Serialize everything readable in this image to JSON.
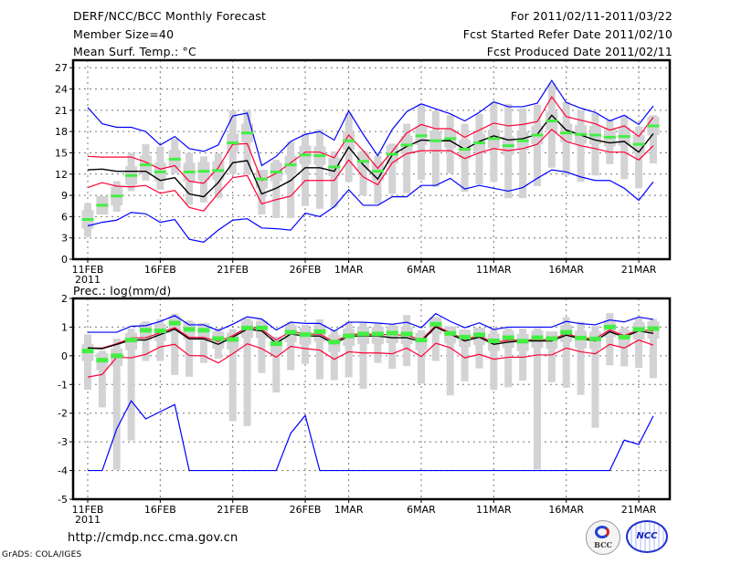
{
  "header": {
    "title": "DERF/NCC/BCC Monthly Forecast",
    "member_size": "Member Size=40",
    "variable": "Mean Surf. Temp.: °C",
    "period": "For 2011/02/11-2011/03/22",
    "started": "Fcst Started Refer Date 2011/02/10",
    "produced": "Fcst Produced Date 2011/02/11"
  },
  "footer": {
    "url": "http://cmdp.ncc.cma.gov.cn",
    "credit": "GrADS: COLA/IGES",
    "logo_bcc": "BCC",
    "logo_ncc": "NCC"
  },
  "colors": {
    "envelope": "#0000ff",
    "spread": "#ff0033",
    "mean": "#000000",
    "member_box": "#d3d3d6",
    "median": "#44ee44"
  },
  "chart_data": [
    {
      "type": "box-line",
      "title": "Mean Surf. Temp.: °C",
      "ylabel": "°C",
      "ylim": [
        0,
        27
      ],
      "yticks": [
        0,
        3,
        6,
        9,
        12,
        15,
        18,
        21,
        24,
        27
      ],
      "grid": true,
      "x_start": "2011-02-11",
      "xticks": [
        {
          "day": 0,
          "label": "11FEB",
          "sub": "2011"
        },
        {
          "day": 5,
          "label": "16FEB"
        },
        {
          "day": 10,
          "label": "21FEB"
        },
        {
          "day": 15,
          "label": "26FEB"
        },
        {
          "day": 18,
          "label": "1MAR"
        },
        {
          "day": 23,
          "label": "6MAR"
        },
        {
          "day": 28,
          "label": "11MAR"
        },
        {
          "day": 33,
          "label": "16MAR"
        },
        {
          "day": 38,
          "label": "21MAR"
        }
      ],
      "median": [
        5.6,
        7.6,
        8.9,
        11.8,
        13.3,
        12.3,
        14.1,
        12.3,
        12.4,
        12.5,
        16.4,
        17.8,
        11.3,
        12.3,
        13.3,
        14.7,
        14.6,
        13.0,
        16.7,
        13.8,
        12.4,
        14.8,
        16.1,
        17.4,
        16.7,
        17.0,
        15.5,
        16.4,
        17.0,
        16.0,
        16.7,
        17.5,
        19.5,
        17.8,
        17.6,
        17.5,
        17.2,
        17.3,
        16.2,
        18.8
      ],
      "box_low": [
        4.3,
        6.3,
        7.6,
        10.5,
        12.0,
        11.0,
        12.8,
        11.0,
        11.1,
        11.2,
        15.1,
        16.5,
        10.0,
        11.0,
        12.0,
        13.4,
        13.3,
        11.7,
        15.4,
        12.5,
        11.1,
        13.5,
        14.8,
        16.1,
        15.4,
        15.7,
        14.2,
        15.1,
        15.7,
        14.7,
        15.4,
        16.2,
        18.2,
        16.5,
        16.3,
        16.2,
        15.9,
        16.0,
        14.9,
        17.5
      ],
      "box_high": [
        6.9,
        8.9,
        10.2,
        13.1,
        14.6,
        13.6,
        15.4,
        13.6,
        13.7,
        13.8,
        17.7,
        19.1,
        12.6,
        13.6,
        14.6,
        16.0,
        15.9,
        14.3,
        18.0,
        15.1,
        13.7,
        16.1,
        17.4,
        18.7,
        18.0,
        18.3,
        16.8,
        17.7,
        18.3,
        17.3,
        18.0,
        18.8,
        20.8,
        19.1,
        18.9,
        18.8,
        18.5,
        18.6,
        17.5,
        20.1
      ],
      "min": [
        3.2,
        6.3,
        6.7,
        9.6,
        11.1,
        9.8,
        12.1,
        7.7,
        8.0,
        8.6,
        12.0,
        12.0,
        6.3,
        5.8,
        5.8,
        7.5,
        7.1,
        7.3,
        10.9,
        9.0,
        7.8,
        9.2,
        9.3,
        11.2,
        10.2,
        12.1,
        9.5,
        10.5,
        10.9,
        8.6,
        8.6,
        10.3,
        12.9,
        11.8,
        10.9,
        11.8,
        13.4,
        11.3,
        10.0,
        13.5
      ],
      "max": [
        7.9,
        8.8,
        11.0,
        15.0,
        16.2,
        15.9,
        17.0,
        15.0,
        14.5,
        14.9,
        21.0,
        21.0,
        12.2,
        14.0,
        16.6,
        17.7,
        18.3,
        15.2,
        20.6,
        15.3,
        14.6,
        16.3,
        19.1,
        21.9,
        20.9,
        20.3,
        19.1,
        20.5,
        22.1,
        21.9,
        21.3,
        21.8,
        24.8,
        22.2,
        21.0,
        20.6,
        19.7,
        20.3,
        18.7,
        20.3
      ],
      "mean": [
        12.6,
        12.7,
        12.4,
        12.4,
        12.4,
        11.1,
        11.5,
        9.2,
        8.8,
        10.8,
        13.6,
        13.9,
        9.2,
        10.0,
        11.1,
        12.9,
        12.9,
        12.4,
        15.8,
        13.3,
        11.3,
        14.7,
        15.9,
        16.8,
        16.7,
        16.7,
        15.5,
        16.6,
        17.4,
        16.8,
        17.0,
        17.6,
        20.3,
        18.2,
        17.5,
        16.8,
        16.4,
        16.6,
        15.1,
        17.7
      ],
      "spread_upper": [
        14.5,
        14.4,
        14.4,
        14.4,
        13.7,
        12.7,
        13.2,
        11.0,
        10.7,
        12.9,
        16.2,
        16.3,
        11.1,
        12.1,
        13.6,
        15.1,
        15.1,
        14.3,
        17.5,
        15.3,
        12.8,
        15.2,
        17.8,
        19.0,
        18.4,
        18.4,
        17.2,
        18.2,
        19.2,
        18.8,
        19.0,
        19.4,
        22.9,
        20.1,
        19.6,
        19.1,
        18.2,
        18.8,
        17.3,
        20.0
      ],
      "spread_lower": [
        10.1,
        10.8,
        10.3,
        10.2,
        10.4,
        9.3,
        9.7,
        7.3,
        6.8,
        9.3,
        11.5,
        11.8,
        7.8,
        8.4,
        8.9,
        11.1,
        11.1,
        11.1,
        14.0,
        11.6,
        10.5,
        13.6,
        14.9,
        15.3,
        15.3,
        15.3,
        14.2,
        15.0,
        15.6,
        15.3,
        15.6,
        16.2,
        18.3,
        16.6,
        16.0,
        15.6,
        15.1,
        15.1,
        14.0,
        16.0
      ],
      "envelope_upper": [
        21.4,
        19.1,
        18.6,
        18.6,
        18.0,
        16.1,
        17.3,
        15.6,
        15.2,
        16.1,
        20.2,
        20.6,
        13.2,
        14.5,
        16.6,
        17.6,
        18.0,
        16.8,
        20.9,
        17.6,
        14.6,
        18.3,
        20.8,
        21.9,
        21.2,
        20.5,
        19.5,
        20.7,
        22.2,
        21.5,
        21.5,
        22.0,
        25.2,
        22.1,
        21.3,
        20.7,
        19.5,
        20.3,
        19.0,
        21.6
      ],
      "envelope_lower": [
        4.7,
        5.2,
        5.5,
        6.6,
        6.4,
        5.2,
        5.6,
        2.8,
        2.4,
        4.1,
        5.5,
        5.7,
        4.4,
        4.3,
        4.1,
        6.5,
        6.0,
        7.4,
        9.8,
        7.6,
        7.6,
        8.8,
        8.8,
        10.4,
        10.4,
        11.4,
        9.9,
        10.4,
        10.0,
        9.6,
        10.1,
        11.4,
        12.6,
        12.3,
        11.6,
        11.1,
        11.1,
        10.0,
        8.3,
        10.9
      ]
    },
    {
      "type": "box-line",
      "title": "Prec.: log(mm/d)",
      "ylabel": "log(mm/d)",
      "ylim": [
        -5,
        2
      ],
      "yticks": [
        -5,
        -4,
        -3,
        -2,
        -1,
        0,
        1,
        2
      ],
      "grid": true,
      "x_start": "2011-02-11",
      "xticks": [
        {
          "day": 0,
          "label": "11FEB",
          "sub": "2011"
        },
        {
          "day": 5,
          "label": "16FEB"
        },
        {
          "day": 10,
          "label": "21FEB"
        },
        {
          "day": 15,
          "label": "26FEB"
        },
        {
          "day": 18,
          "label": "1MAR"
        },
        {
          "day": 23,
          "label": "6MAR"
        },
        {
          "day": 28,
          "label": "11MAR"
        },
        {
          "day": 33,
          "label": "16MAR"
        },
        {
          "day": 38,
          "label": "21MAR"
        }
      ],
      "median": [
        0.17,
        -0.15,
        0,
        0.55,
        0.89,
        0.87,
        1.14,
        0.92,
        0.89,
        0.6,
        0.57,
        0.97,
        0.97,
        0.42,
        0.82,
        0.74,
        0.84,
        0.48,
        0.69,
        0.76,
        0.76,
        0.79,
        0.76,
        0.55,
        1.1,
        0.78,
        0.65,
        0.73,
        0.52,
        0.63,
        0.51,
        0.63,
        0.6,
        0.82,
        0.62,
        0.59,
        1.0,
        0.65,
        0.92,
        0.95
      ],
      "box_low": [
        -0.18,
        -0.5,
        -0.35,
        0.2,
        0.54,
        0.52,
        0.79,
        0.57,
        0.54,
        0.25,
        0.22,
        0.62,
        0.62,
        0.07,
        0.47,
        0.39,
        0.49,
        0.13,
        0.34,
        0.41,
        0.41,
        0.44,
        0.41,
        0.2,
        0.75,
        0.43,
        0.3,
        0.38,
        0.17,
        0.28,
        0.16,
        0.28,
        0.25,
        0.47,
        0.27,
        0.24,
        0.65,
        0.3,
        0.57,
        0.6
      ],
      "box_high": [
        0.42,
        0.1,
        0.25,
        0.8,
        1.14,
        1.12,
        1.39,
        1.17,
        1.14,
        0.85,
        0.82,
        1.22,
        1.22,
        0.67,
        1.07,
        0.99,
        1.09,
        0.73,
        0.94,
        1.01,
        1.01,
        1.04,
        1.01,
        0.8,
        1.35,
        1.03,
        0.9,
        0.98,
        0.77,
        0.88,
        0.76,
        0.88,
        0.85,
        1.07,
        0.87,
        0.84,
        1.25,
        0.9,
        1.17,
        1.2
      ],
      "min": [
        -1.18,
        -1.8,
        -3.97,
        -2.95,
        -0.18,
        -0.18,
        -0.67,
        -0.73,
        -0.25,
        -0.1,
        -2.28,
        -2.45,
        -0.6,
        -1.28,
        -0.5,
        -0.28,
        -0.82,
        -0.85,
        -0.75,
        -1.15,
        -0.25,
        -0.45,
        -0.36,
        -0.97,
        -0.18,
        -1.38,
        -0.89,
        -0.44,
        -1.19,
        -1.1,
        -0.87,
        -3.96,
        -0.92,
        -1.11,
        -1.36,
        -2.51,
        -0.33,
        -0.37,
        -0.42,
        -0.78
      ],
      "max": [
        0.75,
        0.18,
        0.6,
        0.95,
        1.2,
        1.28,
        1.47,
        1.23,
        1.1,
        0.97,
        0.93,
        1.3,
        1.25,
        0.62,
        1.2,
        1.08,
        1.27,
        0.9,
        1.2,
        1.18,
        1.12,
        1.1,
        1.42,
        0.89,
        1.31,
        0.97,
        0.92,
        0.97,
        0.92,
        0.97,
        0.95,
        0.97,
        0.78,
        1.35,
        1.19,
        1.03,
        1.49,
        0.99,
        1.31,
        1.29
      ],
      "mean": [
        0.27,
        0.25,
        0.4,
        0.55,
        0.55,
        0.74,
        0.93,
        0.59,
        0.59,
        0.4,
        0.65,
        0.93,
        0.87,
        0.44,
        0.76,
        0.69,
        0.69,
        0.42,
        0.69,
        0.69,
        0.69,
        0.63,
        0.63,
        0.5,
        1.01,
        0.76,
        0.52,
        0.65,
        0.4,
        0.48,
        0.52,
        0.52,
        0.52,
        0.72,
        0.59,
        0.52,
        0.84,
        0.65,
        0.87,
        0.78
      ],
      "spread_upper": [
        0.27,
        0.27,
        0.42,
        0.62,
        0.63,
        0.8,
        0.98,
        0.64,
        0.64,
        0.5,
        0.7,
        1.0,
        0.92,
        0.55,
        0.85,
        0.76,
        0.76,
        0.48,
        0.75,
        0.75,
        0.75,
        0.73,
        0.72,
        0.55,
        1.05,
        0.8,
        0.58,
        0.7,
        0.46,
        0.54,
        0.55,
        0.56,
        0.56,
        0.78,
        0.62,
        0.6,
        0.9,
        0.7,
        0.92,
        0.86
      ],
      "spread_lower": [
        -0.74,
        -0.65,
        -0.05,
        -0.07,
        0.05,
        0.31,
        0.4,
        0.01,
        0,
        -0.25,
        0.07,
        0.42,
        0.25,
        -0.05,
        0.33,
        0.25,
        0.2,
        -0.12,
        0.14,
        0.1,
        0.1,
        0.07,
        0.27,
        -0.03,
        0.44,
        0.28,
        -0.07,
        0.05,
        -0.12,
        -0.05,
        -0.05,
        0.03,
        0.03,
        0.27,
        0.14,
        0.07,
        0.4,
        0.27,
        0.55,
        0.37
      ],
      "envelope_upper": [
        0.82,
        0.82,
        0.82,
        1.03,
        1.05,
        1.2,
        1.4,
        1.08,
        1.08,
        0.88,
        1.1,
        1.36,
        1.28,
        0.9,
        1.17,
        1.13,
        1.13,
        0.86,
        1.17,
        1.17,
        1.14,
        1.1,
        1.17,
        0.98,
        1.47,
        1.2,
        0.98,
        1.15,
        0.92,
        1.0,
        1.0,
        1.0,
        1.0,
        1.2,
        1.12,
        1.08,
        1.25,
        1.18,
        1.35,
        1.27
      ],
      "envelope_lower": [
        -4,
        -4,
        -2.55,
        -1.57,
        -2.2,
        -1.95,
        -1.7,
        -4,
        -4,
        -4,
        -4,
        -4,
        -4,
        -4,
        -2.7,
        -2.08,
        -4,
        -4,
        -4,
        -4,
        -4,
        -4,
        -4,
        -4,
        -4,
        -4,
        -4,
        -4,
        -4,
        -4,
        -4,
        -4,
        -4,
        -4,
        -4,
        -4,
        -4,
        -2.94,
        -3.09,
        -2.1
      ]
    }
  ]
}
